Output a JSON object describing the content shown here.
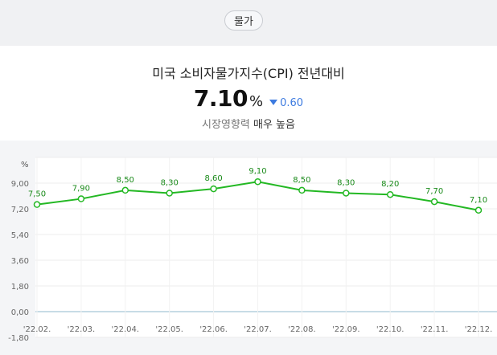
{
  "category_pill": "물가",
  "indicator": {
    "title": "미국 소비자물가지수(CPI) 전년대비",
    "value": "7.10",
    "unit": "%",
    "change": "0.60",
    "change_direction": "down",
    "impact_label": "시장영향력",
    "impact_level": "매우 높음"
  },
  "colors": {
    "line": "#23b823",
    "zero_line": "#8fb8cc",
    "change_down": "#3d7be0"
  },
  "chart_data": {
    "type": "line",
    "ylabel": "%",
    "ylim": [
      -1.8,
      10.8
    ],
    "y_ticks": [
      "9,00",
      "7,20",
      "5,40",
      "3,60",
      "1,80",
      "0,00",
      "-1,80"
    ],
    "y_tick_values": [
      9.0,
      7.2,
      5.4,
      3.6,
      1.8,
      0.0,
      -1.8
    ],
    "categories": [
      "'22.02.",
      "'22.03.",
      "'22.04.",
      "'22.05.",
      "'22.06.",
      "'22.07.",
      "'22.08.",
      "'22.09.",
      "'22.10.",
      "'22.11.",
      "'22.12."
    ],
    "x_tick_labels": [
      "'22.02.",
      "'22.03.",
      "'22.04.",
      "'22.05.",
      "'22.06.",
      "'22.07.",
      "'22.08.",
      "'22.09.",
      "'22.10.",
      "'22.11.",
      "'22.12."
    ],
    "values": [
      7.5,
      7.9,
      8.5,
      8.3,
      8.6,
      9.1,
      8.5,
      8.3,
      8.2,
      7.7,
      7.1
    ],
    "value_labels": [
      "7,50",
      "7,90",
      "8,50",
      "8,30",
      "8,60",
      "9,10",
      "8,50",
      "8,30",
      "8,20",
      "7,70",
      "7,10"
    ],
    "grid": true
  }
}
